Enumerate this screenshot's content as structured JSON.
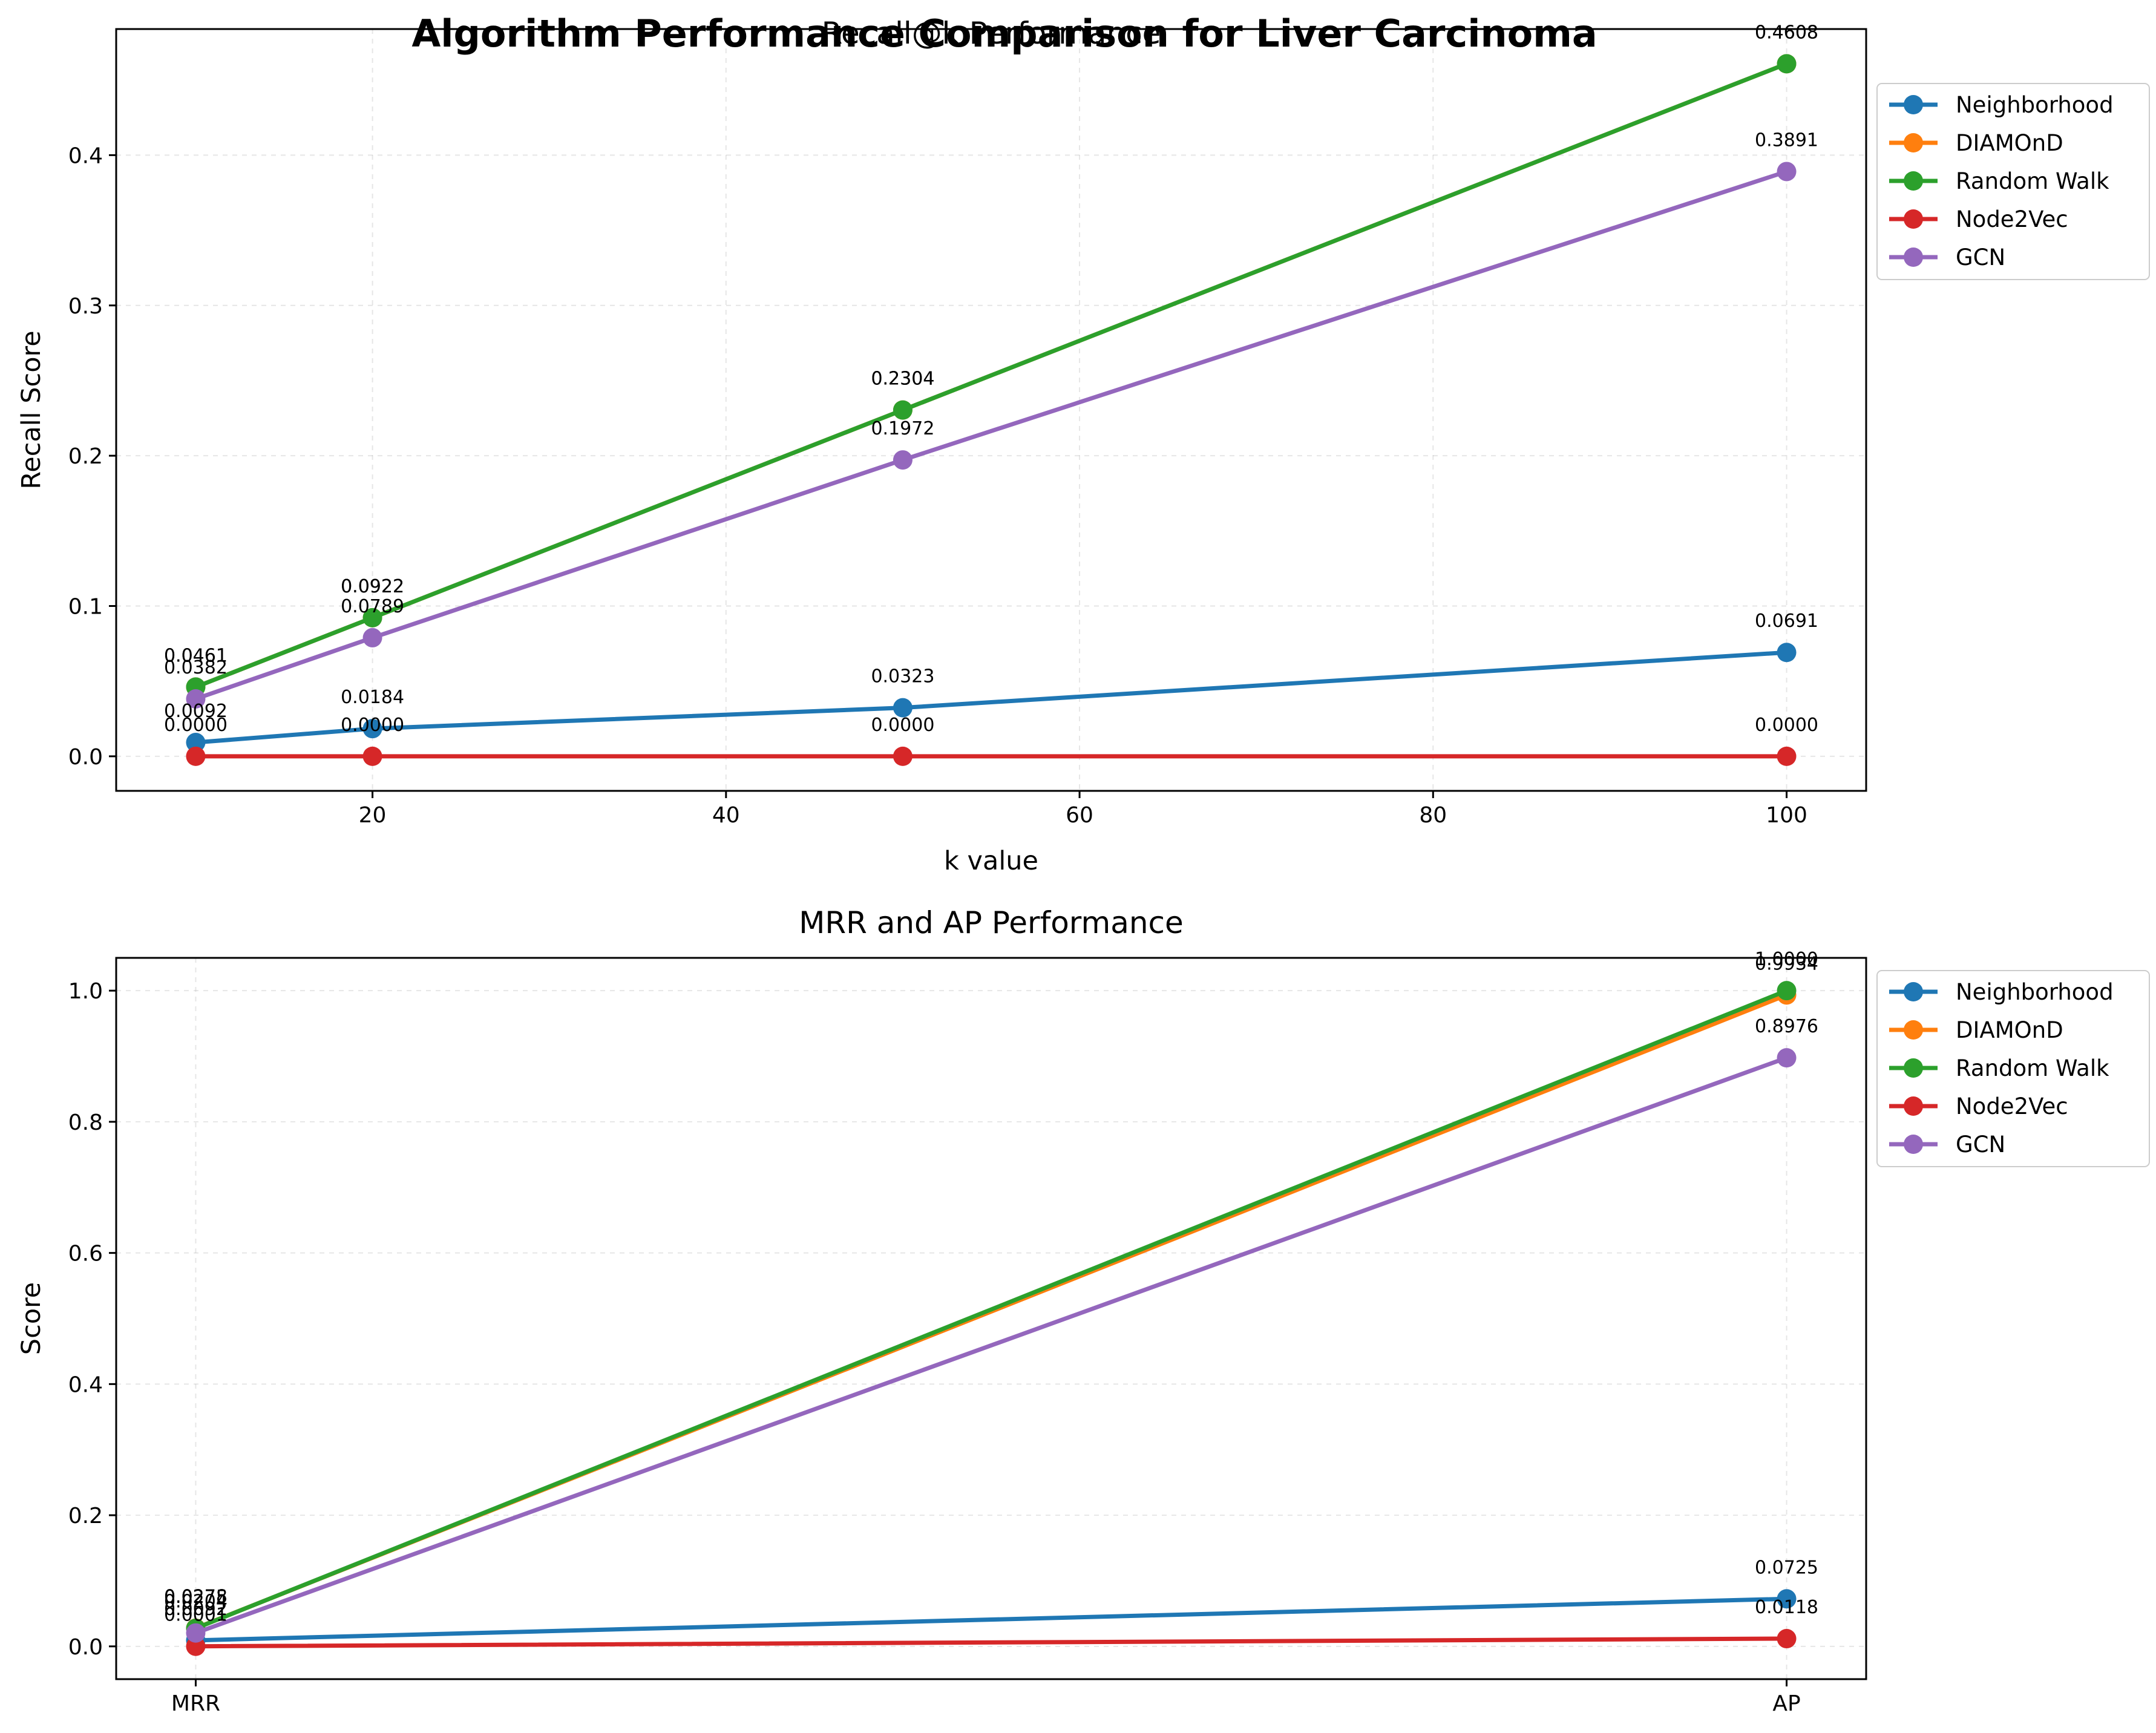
{
  "figure": {
    "suptitle": "Algorithm Performance Comparison for Liver Carcinoma"
  },
  "chart_data": [
    {
      "type": "line",
      "title": "Recall@k Performance",
      "xlabel": "k value",
      "ylabel": "Recall Score",
      "x": [
        10,
        20,
        50,
        100
      ],
      "xticks": [
        20,
        40,
        60,
        80,
        100
      ],
      "yticks": [
        0.0,
        0.1,
        0.2,
        0.3,
        0.4
      ],
      "xlim": [
        5.5,
        104.5
      ],
      "ylim": [
        -0.023,
        0.4839
      ],
      "grid": true,
      "legend_position": "outside-top-right",
      "series": [
        {
          "name": "Neighborhood",
          "color": "#1f77b4",
          "values": [
            0.0092,
            0.0184,
            0.0323,
            0.0691
          ],
          "labels": [
            "0.0092",
            "0.0184",
            "0.0323",
            "0.0691"
          ]
        },
        {
          "name": "DIAMOnD",
          "color": "#ff7f0e",
          "values": [
            0.0461,
            0.0922,
            0.2304,
            0.4608
          ],
          "labels": [
            "0.0461",
            "0.0922",
            "0.2304",
            "0.4608"
          ]
        },
        {
          "name": "Random Walk",
          "color": "#2ca02c",
          "values": [
            0.0461,
            0.0922,
            0.2304,
            0.4608
          ],
          "labels": [
            "0.0461",
            "0.0922",
            "0.2304",
            "0.4608"
          ]
        },
        {
          "name": "Node2Vec",
          "color": "#d62728",
          "values": [
            0.0,
            0.0,
            0.0,
            0.0
          ],
          "labels": [
            "0.0000",
            "0.0000",
            "0.0000",
            "0.0000"
          ]
        },
        {
          "name": "GCN",
          "color": "#9467bd",
          "values": [
            0.0382,
            0.0789,
            0.1972,
            0.3891
          ],
          "labels": [
            "0.0382",
            "0.0789",
            "0.1972",
            "0.3891"
          ]
        }
      ]
    },
    {
      "type": "line",
      "title": "MRR and AP Performance",
      "xlabel": "",
      "ylabel": "Score",
      "categories": [
        "MRR",
        "AP"
      ],
      "yticks": [
        0.0,
        0.2,
        0.4,
        0.6,
        0.8,
        1.0
      ],
      "ylim": [
        -0.05,
        1.05
      ],
      "grid": true,
      "legend_position": "outside-top-right",
      "series": [
        {
          "name": "Neighborhood",
          "color": "#1f77b4",
          "values": [
            0.0092,
            0.0725
          ],
          "labels": [
            "0.0092",
            "0.0725"
          ]
        },
        {
          "name": "DIAMOnD",
          "color": "#ff7f0e",
          "values": [
            0.0278,
            0.9934
          ],
          "labels": [
            "0.0278",
            "0.9934"
          ]
        },
        {
          "name": "Random Walk",
          "color": "#2ca02c",
          "values": [
            0.0275,
            1.0
          ],
          "labels": [
            "0.0275",
            "1.0000"
          ]
        },
        {
          "name": "Node2Vec",
          "color": "#d62728",
          "values": [
            0.0001,
            0.0118
          ],
          "labels": [
            "0.0001",
            "0.0118"
          ]
        },
        {
          "name": "GCN",
          "color": "#9467bd",
          "values": [
            0.0204,
            0.8976
          ],
          "labels": [
            "0.0204",
            "0.8976"
          ]
        }
      ]
    }
  ]
}
